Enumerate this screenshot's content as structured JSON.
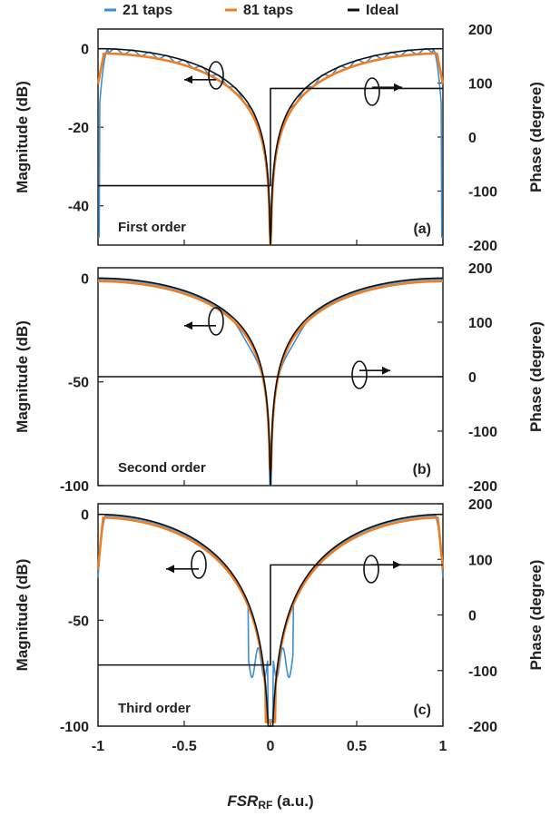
{
  "legend": [
    {
      "label": "21 taps",
      "color": "#3b8fd6"
    },
    {
      "label": "81 taps",
      "color": "#ef7d22"
    },
    {
      "label": "Ideal",
      "color": "#111111"
    }
  ],
  "xlabel": {
    "italic": "FSR",
    "sub": "RF",
    "unit": " (a.u.)"
  },
  "chart_data": [
    {
      "type": "line",
      "title": "First order",
      "tag": "(a)",
      "xlim": [
        -1,
        1
      ],
      "xticks": [
        "-1",
        "-0.5",
        "0",
        "0.5",
        "1"
      ],
      "ylabel_left": "Magnitude (dB)",
      "ylabel_right": "Phase (degree)",
      "ylim_left": [
        -50,
        5
      ],
      "ylim_right": [
        -200,
        200
      ],
      "yticks_left": [
        0,
        -20,
        -40
      ],
      "yticks_right": [
        200,
        100,
        0,
        -100,
        -200
      ],
      "series": [
        {
          "name": "21 taps",
          "axis": "left",
          "kind": "first21"
        },
        {
          "name": "81 taps",
          "axis": "left",
          "kind": "first81"
        },
        {
          "name": "Ideal",
          "axis": "left",
          "kind": "first-ideal-mag"
        },
        {
          "name": "Ideal",
          "axis": "right",
          "x": [
            -1,
            0,
            0,
            1
          ],
          "y": [
            -90,
            -90,
            90,
            90
          ]
        }
      ]
    },
    {
      "type": "line",
      "title": "Second order",
      "tag": "(b)",
      "xlim": [
        -1,
        1
      ],
      "xticks": [
        "-1",
        "-0.5",
        "0",
        "0.5",
        "1"
      ],
      "ylabel_left": "Magnitude (dB)",
      "ylabel_right": "Phase (degree)",
      "ylim_left": [
        -100,
        5
      ],
      "ylim_right": [
        -200,
        200
      ],
      "yticks_left": [
        0,
        -50,
        -100
      ],
      "yticks_right": [
        200,
        100,
        0,
        -100,
        -200
      ],
      "series": [
        {
          "name": "21 taps",
          "axis": "left",
          "kind": "second21"
        },
        {
          "name": "81 taps",
          "axis": "left",
          "kind": "second81"
        },
        {
          "name": "Ideal",
          "axis": "left",
          "kind": "second-ideal-mag"
        },
        {
          "name": "Ideal",
          "axis": "right",
          "x": [
            -1,
            1
          ],
          "y": [
            0,
            0
          ]
        }
      ]
    },
    {
      "type": "line",
      "title": "Third order",
      "tag": "(c)",
      "xlim": [
        -1,
        1
      ],
      "xticks": [
        "-1",
        "-0.5",
        "0",
        "0.5",
        "1"
      ],
      "ylabel_left": "Magnitude (dB)",
      "ylabel_right": "Phase (degree)",
      "ylim_left": [
        -100,
        5
      ],
      "ylim_right": [
        -200,
        200
      ],
      "yticks_left": [
        0,
        -50,
        -100
      ],
      "yticks_right": [
        200,
        100,
        0,
        -100,
        -200
      ],
      "series": [
        {
          "name": "21 taps",
          "axis": "left",
          "kind": "third21"
        },
        {
          "name": "81 taps",
          "axis": "left",
          "kind": "third81"
        },
        {
          "name": "Ideal",
          "axis": "left",
          "kind": "third-ideal-mag"
        },
        {
          "name": "Ideal",
          "axis": "right",
          "x": [
            -1,
            0,
            0,
            1
          ],
          "y": [
            -90,
            -90,
            90,
            90
          ]
        }
      ]
    }
  ]
}
